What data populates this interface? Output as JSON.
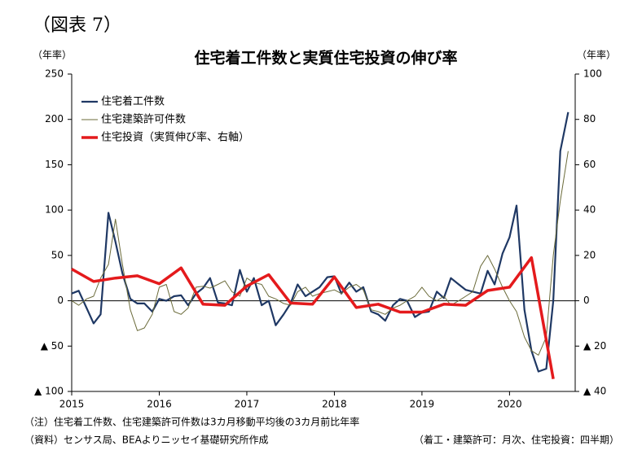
{
  "chart_data": {
    "type": "line",
    "label": "（図表 7）",
    "title": "住宅着工件数と実質住宅投資の伸び率",
    "ylabel": "（年率）",
    "y2label": "（年率）",
    "xlim": [
      2015,
      2020.75
    ],
    "xticks": [
      2015,
      2016,
      2017,
      2018,
      2019,
      2020
    ],
    "ylim": [
      -100,
      250
    ],
    "yticks": [
      {
        "value": -100,
        "label": "▲ 100"
      },
      {
        "value": -50,
        "label": "▲ 50"
      },
      0,
      50,
      100,
      150,
      200,
      250
    ],
    "y2lim": [
      -40,
      100
    ],
    "y2ticks": [
      {
        "value": -40,
        "label": "▲ 40"
      },
      {
        "value": -20,
        "label": "▲ 20"
      },
      0,
      20,
      40,
      60,
      80,
      100
    ],
    "legend": "upper left",
    "x": [
      2015.0,
      2015.08,
      2015.17,
      2015.25,
      2015.33,
      2015.42,
      2015.5,
      2015.58,
      2015.67,
      2015.75,
      2015.83,
      2015.92,
      2016.0,
      2016.08,
      2016.17,
      2016.25,
      2016.33,
      2016.42,
      2016.5,
      2016.58,
      2016.67,
      2016.75,
      2016.83,
      2016.92,
      2017.0,
      2017.08,
      2017.17,
      2017.25,
      2017.33,
      2017.42,
      2017.5,
      2017.58,
      2017.67,
      2017.75,
      2017.83,
      2017.92,
      2018.0,
      2018.08,
      2018.17,
      2018.25,
      2018.33,
      2018.42,
      2018.5,
      2018.58,
      2018.67,
      2018.75,
      2018.83,
      2018.92,
      2019.0,
      2019.08,
      2019.17,
      2019.25,
      2019.33,
      2019.42,
      2019.5,
      2019.58,
      2019.67,
      2019.75,
      2019.83,
      2019.92,
      2020.0,
      2020.08,
      2020.17,
      2020.25,
      2020.33,
      2020.42,
      2020.5,
      2020.58,
      2020.67
    ],
    "series": [
      {
        "name": "住宅着工件数",
        "color": "#1f3864",
        "width": 2.2,
        "values": [
          8,
          11,
          -8,
          -25,
          -15,
          97,
          65,
          30,
          2,
          -3,
          -3,
          -12,
          2,
          0,
          5,
          6,
          -5,
          8,
          14,
          25,
          -2,
          -3,
          -5,
          34,
          10,
          25,
          -5,
          0,
          -27,
          -15,
          -3,
          18,
          5,
          10,
          15,
          26,
          27,
          8,
          20,
          10,
          15,
          -12,
          -15,
          -22,
          -5,
          2,
          0,
          -18,
          -13,
          -12,
          10,
          3,
          25,
          18,
          12,
          10,
          8,
          33,
          18,
          52,
          70,
          105,
          -10,
          -55,
          -78,
          -75,
          0,
          165,
          208
        ]
      },
      {
        "name": "住宅建築許可件数",
        "color": "#6b6b3a",
        "width": 1,
        "values": [
          0,
          -5,
          2,
          5,
          25,
          40,
          90,
          40,
          -10,
          -33,
          -30,
          -15,
          15,
          18,
          -12,
          -15,
          -8,
          15,
          16,
          14,
          18,
          22,
          10,
          5,
          25,
          20,
          18,
          5,
          2,
          -3,
          -5,
          10,
          15,
          5,
          8,
          10,
          12,
          8,
          15,
          18,
          12,
          -10,
          -12,
          -15,
          -8,
          -5,
          0,
          5,
          15,
          5,
          0,
          5,
          -5,
          0,
          5,
          10,
          38,
          50,
          35,
          15,
          0,
          -12,
          -40,
          -55,
          -60,
          -40,
          50,
          110,
          165
        ]
      },
      {
        "name": "住宅投資（実質伸び率、右軸）",
        "color": "#e41a1c",
        "width": 3.5,
        "axis": "y2",
        "x": [
          2015.0,
          2015.25,
          2015.5,
          2015.75,
          2016.0,
          2016.25,
          2016.5,
          2016.75,
          2017.0,
          2017.25,
          2017.5,
          2017.75,
          2018.0,
          2018.25,
          2018.5,
          2018.75,
          2019.0,
          2019.25,
          2019.5,
          2019.75,
          2020.0,
          2020.25,
          2020.5
        ],
        "values": [
          14,
          8.5,
          10,
          11,
          7.5,
          14.5,
          -1.5,
          -2,
          6.5,
          11.5,
          -1,
          -1.5,
          10.5,
          -3,
          -1.5,
          -5,
          -5,
          -1.5,
          -2,
          4.5,
          6,
          19,
          -34.5
        ]
      }
    ],
    "notes": [
      "（注）住宅着工件数、住宅建築許可件数は3カ月移動平均後の3カ月前比年率",
      "（資料）センサス局、BEAよりニッセイ基礎研究所作成"
    ],
    "note_right": "（着工・建築許可：月次、住宅投資：四半期）"
  }
}
